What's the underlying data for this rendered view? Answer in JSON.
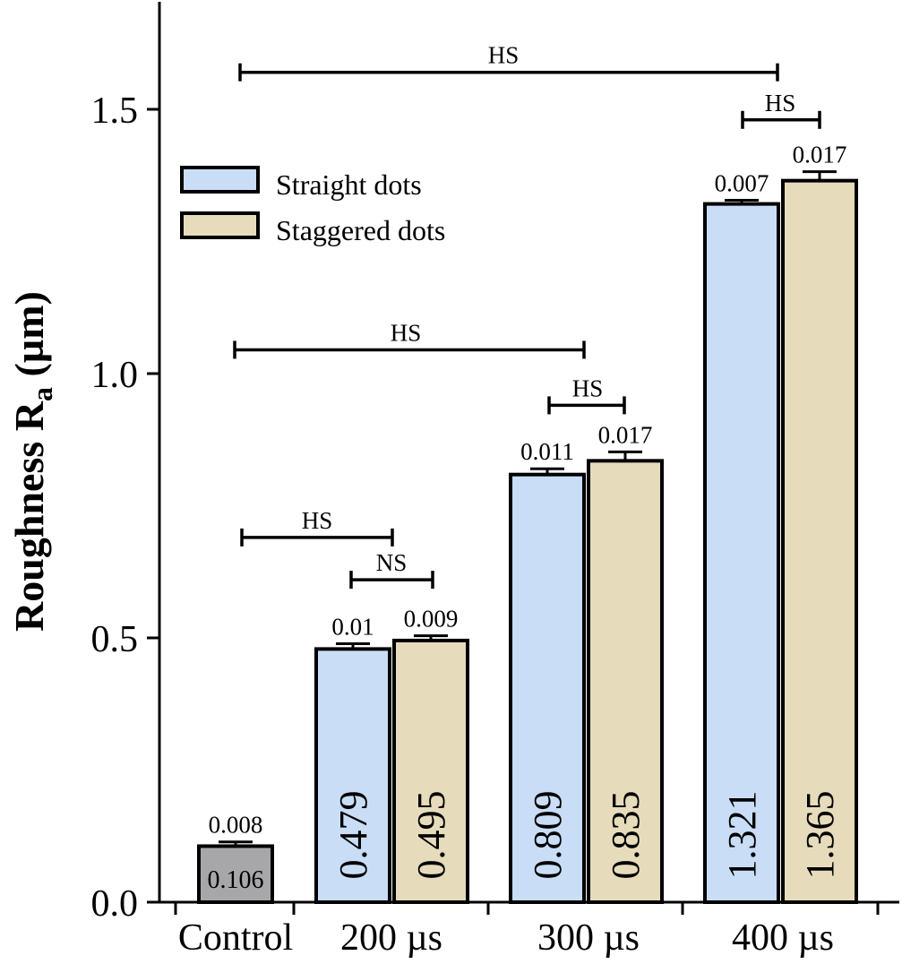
{
  "chart_data": {
    "type": "bar",
    "ylabel_main": "Roughness R",
    "ylabel_sub": "a",
    "ylabel_unit": " (µm)",
    "ylim": [
      0,
      1.7
    ],
    "yticks": [
      {
        "value": 0,
        "label": "0.0"
      },
      {
        "value": 0.5,
        "label": "0.5"
      },
      {
        "value": 1.0,
        "label": "1.0"
      },
      {
        "value": 1.5,
        "label": "1.5"
      }
    ],
    "categories": [
      "Control",
      "200 µs",
      "300 µs",
      "400 µs"
    ],
    "series": [
      {
        "name": "Straight dots",
        "color": "#c9ddf6"
      },
      {
        "name": "Staggered dots",
        "color": "#e6dcbc"
      }
    ],
    "control_color": "#a7a7aa",
    "bars": [
      {
        "group": 0,
        "series": null,
        "value": 0.106,
        "label": "0.106",
        "sd": 0.008,
        "sd_label": "0.008"
      },
      {
        "group": 1,
        "series": 0,
        "value": 0.479,
        "label": "0.479",
        "sd": 0.01,
        "sd_label": "0.01"
      },
      {
        "group": 1,
        "series": 1,
        "value": 0.495,
        "label": "0.495",
        "sd": 0.009,
        "sd_label": "0.009"
      },
      {
        "group": 2,
        "series": 0,
        "value": 0.809,
        "label": "0.809",
        "sd": 0.011,
        "sd_label": "0.011"
      },
      {
        "group": 2,
        "series": 1,
        "value": 0.835,
        "label": "0.835",
        "sd": 0.017,
        "sd_label": "0.017"
      },
      {
        "group": 3,
        "series": 0,
        "value": 1.321,
        "label": "1.321",
        "sd": 0.007,
        "sd_label": "0.007"
      },
      {
        "group": 3,
        "series": 1,
        "value": 1.365,
        "label": "1.365",
        "sd": 0.017,
        "sd_label": "0.017"
      }
    ],
    "significance": [
      {
        "from": "Control",
        "to": "200 µs (Straight dots)",
        "label": "HS",
        "y": 0.69
      },
      {
        "from": "200 µs (Straight dots)",
        "to": "200 µs (Staggered dots)",
        "label": "NS",
        "y": 0.61
      },
      {
        "from": "Control",
        "to": "300 µs (Straight dots)",
        "label": "HS",
        "y": 1.045
      },
      {
        "from": "300 µs (Straight dots)",
        "to": "300 µs (Staggered dots)",
        "label": "HS",
        "y": 0.94
      },
      {
        "from": "Control",
        "to": "400 µs (Straight dots)",
        "label": "HS",
        "y": 1.57
      },
      {
        "from": "400 µs (Straight dots)",
        "to": "400 µs (Staggered dots)",
        "label": "HS",
        "y": 1.48
      }
    ],
    "legend_position": "top-left",
    "grid": false
  }
}
